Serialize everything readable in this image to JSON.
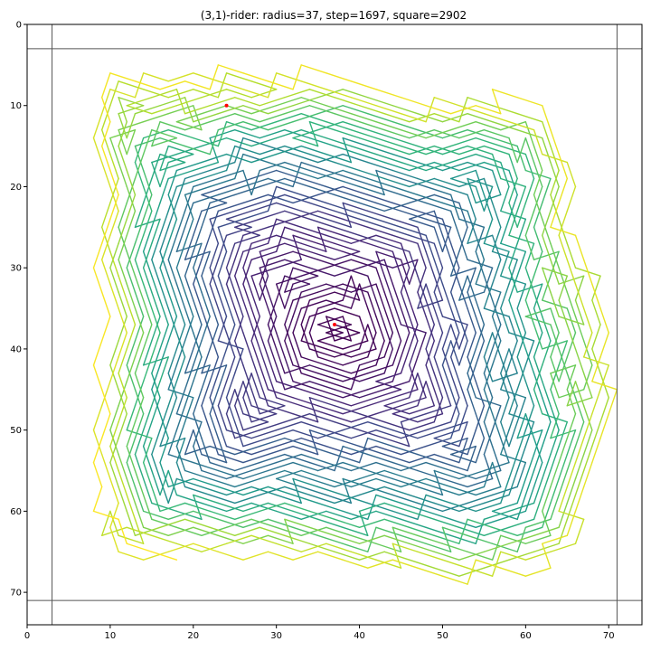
{
  "chart_data": {
    "type": "line",
    "title": "(3,1)-rider: radius=37, step=1697, square=2902",
    "xlabel": "",
    "ylabel": "",
    "xlim": [
      0,
      74
    ],
    "ylim": [
      74,
      0
    ],
    "y_inverted": true,
    "x_ticks": [
      0,
      10,
      20,
      30,
      40,
      50,
      60,
      70
    ],
    "y_ticks": [
      0,
      10,
      20,
      30,
      40,
      50,
      60,
      70
    ],
    "grid": false,
    "colormap": "viridis",
    "boundary_lines": {
      "x": [
        3,
        71
      ],
      "y": [
        3,
        71
      ],
      "color": "#555555"
    },
    "start_point": {
      "x": 37,
      "y": 37,
      "color": "#ff0000"
    },
    "end_point": {
      "x": 24,
      "y": 10,
      "color": "#ff0000"
    },
    "rider_move": [
      3,
      1
    ],
    "center": [
      37,
      37
    ],
    "radius": 37,
    "steps": 1697,
    "square": 2902,
    "path_description": "spiral of (3,1)-rider moves outward from the centre square",
    "legend": "none"
  }
}
